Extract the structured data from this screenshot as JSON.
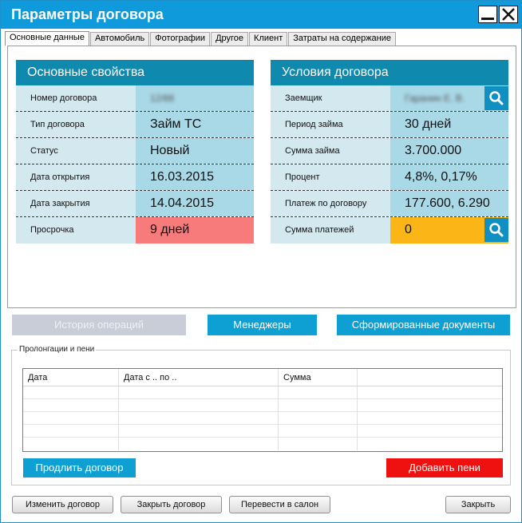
{
  "window": {
    "title": "Параметры договора"
  },
  "tabs": [
    {
      "label": "Основные данные",
      "active": true
    },
    {
      "label": "Автомобиль"
    },
    {
      "label": "Фотографии"
    },
    {
      "label": "Другое"
    },
    {
      "label": "Клиент"
    },
    {
      "label": "Затраты на содержание"
    }
  ],
  "basic": {
    "title": "Основные свойства",
    "rows": [
      {
        "label": "Номер договора",
        "value": "12/88"
      },
      {
        "label": "Тип договора",
        "value": "Займ ТС"
      },
      {
        "label": "Статус",
        "value": "Новый"
      },
      {
        "label": "Дата открытия",
        "value": "16.03.2015"
      },
      {
        "label": "Дата закрытия",
        "value": "14.04.2015"
      },
      {
        "label": "Просрочка",
        "value": "9 дней"
      }
    ]
  },
  "terms": {
    "title": "Условия договора",
    "rows": [
      {
        "label": "Заемщик",
        "value": "Гаранин Е. В."
      },
      {
        "label": "Период займа",
        "value": "30 дней"
      },
      {
        "label": "Сумма займа",
        "value": "3.700.000"
      },
      {
        "label": "Процент",
        "value": "4,8%, 0,17%"
      },
      {
        "label": "Платеж по договору",
        "value": "177.600, 6.290"
      },
      {
        "label": "Сумма платежей",
        "value": "0"
      }
    ]
  },
  "actions": {
    "history": "История операций",
    "managers": "Менеджеры",
    "documents": "Сформированные документы"
  },
  "prolong": {
    "title": "Пролонгации и пени",
    "columns": [
      "Дата",
      "Дата с .. по ..",
      "Сумма",
      ""
    ],
    "extend_label": "Продлить договор",
    "penalty_label": "Добавить пени"
  },
  "footer": {
    "change": "Изменить договор",
    "close_contract": "Закрыть договор",
    "transfer": "Перевести в салон",
    "close": "Закрыть"
  },
  "colors": {
    "titlebar": "#0f9bdb",
    "overdue": "#f77b7b",
    "payments": "#fbb516",
    "penalty": "#ef1010"
  }
}
